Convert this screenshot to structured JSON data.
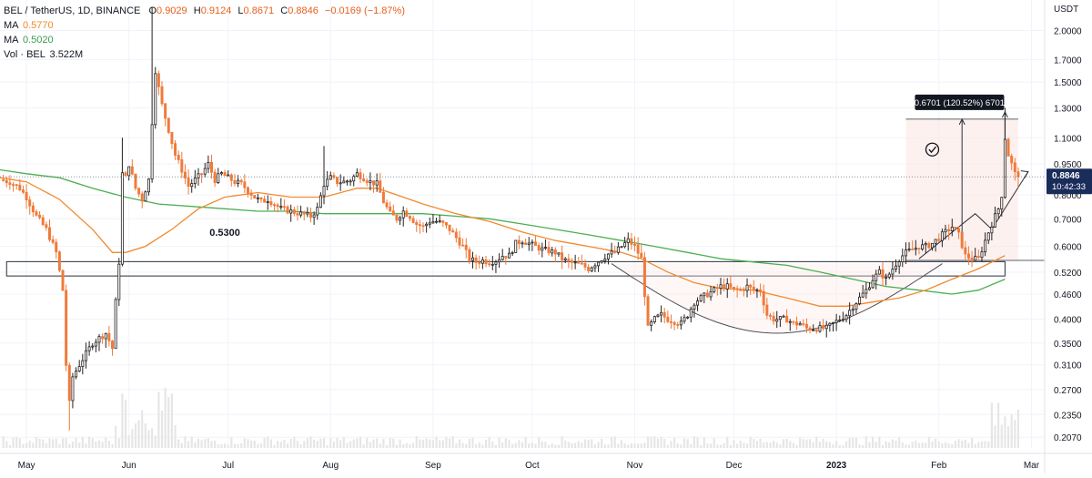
{
  "chart_data": {
    "type": "candlestick",
    "header": {
      "symbol": "BEL / TetherUS, 1D, BINANCE",
      "ohlc": [
        {
          "label": "O",
          "value": "0.9029"
        },
        {
          "label": "H",
          "value": "0.9124"
        },
        {
          "label": "L",
          "value": "0.8671"
        },
        {
          "label": "C",
          "value": "0.8846"
        }
      ],
      "change": "−0.0169 (−1.87%)"
    },
    "indicators": [
      {
        "label": "MA",
        "value": "0.5770",
        "color": "#f28a2e"
      },
      {
        "label": "MA",
        "value": "0.5020",
        "color": "#4caf50"
      },
      {
        "label": "Vol · BEL",
        "value": "3.522M",
        "color": "#131722"
      }
    ],
    "y_axis": {
      "unit": "USDT",
      "scale": "log",
      "range": [
        0.195,
        2.3
      ],
      "ticks": [
        "2.0000",
        "1.7000",
        "1.5000",
        "1.3000",
        "1.1000",
        "0.9500",
        "0.8000",
        "0.7000",
        "0.6000",
        "0.5200",
        "0.4600",
        "0.4000",
        "0.3500",
        "0.3100",
        "0.2700",
        "0.2350",
        "0.2070"
      ]
    },
    "x_axis": {
      "labels": [
        {
          "text": "May",
          "day": 0
        },
        {
          "text": "Jun",
          "day": 31
        },
        {
          "text": "Jul",
          "day": 61
        },
        {
          "text": "Aug",
          "day": 92
        },
        {
          "text": "Sep",
          "day": 123
        },
        {
          "text": "Oct",
          "day": 153
        },
        {
          "text": "Nov",
          "day": 184
        },
        {
          "text": "Dec",
          "day": 214
        },
        {
          "text": "2023",
          "day": 245,
          "bold": true
        },
        {
          "text": "Feb",
          "day": 276
        },
        {
          "text": "Mar",
          "day": 304
        }
      ],
      "first_day": -8,
      "last_day": 308
    },
    "last_price": {
      "value": 0.8846,
      "label": "0.8846",
      "countdown": "10:42:33",
      "color": "#1a2c5a"
    },
    "level_label": {
      "text": "0.5300",
      "value": 0.53
    },
    "measure_label": "0.6701 (120.52%) 6701",
    "price_path": [
      [
        -8,
        0.87
      ],
      [
        -5,
        0.86
      ],
      [
        -2,
        0.83
      ],
      [
        0,
        0.79
      ],
      [
        3,
        0.71
      ],
      [
        6,
        0.66
      ],
      [
        9,
        0.58
      ],
      [
        11,
        0.47
      ],
      [
        12,
        0.31
      ],
      [
        13,
        0.25
      ],
      [
        14,
        0.29
      ],
      [
        16,
        0.31
      ],
      [
        18,
        0.33
      ],
      [
        20,
        0.35
      ],
      [
        22,
        0.36
      ],
      [
        24,
        0.37
      ],
      [
        26,
        0.34
      ],
      [
        27,
        0.44
      ],
      [
        28,
        0.55
      ],
      [
        29,
        0.9
      ],
      [
        30,
        0.88
      ],
      [
        31,
        0.95
      ],
      [
        33,
        0.83
      ],
      [
        35,
        0.78
      ],
      [
        37,
        0.87
      ],
      [
        38,
        1.2
      ],
      [
        39,
        1.6
      ],
      [
        40,
        1.45
      ],
      [
        41,
        1.32
      ],
      [
        43,
        1.15
      ],
      [
        45,
        1.0
      ],
      [
        47,
        0.92
      ],
      [
        49,
        0.84
      ],
      [
        51,
        0.87
      ],
      [
        53,
        0.9
      ],
      [
        55,
        0.95
      ],
      [
        57,
        0.87
      ],
      [
        59,
        0.9
      ],
      [
        61,
        0.88
      ],
      [
        63,
        0.86
      ],
      [
        65,
        0.85
      ],
      [
        67,
        0.82
      ],
      [
        69,
        0.79
      ],
      [
        71,
        0.77
      ],
      [
        73,
        0.78
      ],
      [
        75,
        0.76
      ],
      [
        77,
        0.74
      ],
      [
        80,
        0.73
      ],
      [
        83,
        0.72
      ],
      [
        86,
        0.71
      ],
      [
        88,
        0.74
      ],
      [
        90,
        0.85
      ],
      [
        92,
        0.88
      ],
      [
        94,
        0.86
      ],
      [
        96,
        0.86
      ],
      [
        98,
        0.87
      ],
      [
        100,
        0.9
      ],
      [
        102,
        0.88
      ],
      [
        104,
        0.86
      ],
      [
        106,
        0.85
      ],
      [
        108,
        0.77
      ],
      [
        110,
        0.72
      ],
      [
        112,
        0.7
      ],
      [
        114,
        0.73
      ],
      [
        116,
        0.71
      ],
      [
        118,
        0.68
      ],
      [
        120,
        0.67
      ],
      [
        122,
        0.69
      ],
      [
        124,
        0.69
      ],
      [
        126,
        0.68
      ],
      [
        128,
        0.66
      ],
      [
        130,
        0.63
      ],
      [
        132,
        0.6
      ],
      [
        134,
        0.56
      ],
      [
        136,
        0.55
      ],
      [
        138,
        0.555
      ],
      [
        140,
        0.55
      ],
      [
        142,
        0.555
      ],
      [
        144,
        0.57
      ],
      [
        146,
        0.57
      ],
      [
        148,
        0.61
      ],
      [
        150,
        0.62
      ],
      [
        152,
        0.61
      ],
      [
        154,
        0.6
      ],
      [
        156,
        0.59
      ],
      [
        158,
        0.585
      ],
      [
        160,
        0.58
      ],
      [
        162,
        0.56
      ],
      [
        164,
        0.55
      ],
      [
        166,
        0.545
      ],
      [
        168,
        0.54
      ],
      [
        170,
        0.53
      ],
      [
        172,
        0.545
      ],
      [
        174,
        0.56
      ],
      [
        176,
        0.575
      ],
      [
        178,
        0.58
      ],
      [
        180,
        0.6
      ],
      [
        182,
        0.62
      ],
      [
        184,
        0.6
      ],
      [
        186,
        0.56
      ],
      [
        187,
        0.46
      ],
      [
        188,
        0.38
      ],
      [
        190,
        0.4
      ],
      [
        192,
        0.41
      ],
      [
        194,
        0.4
      ],
      [
        196,
        0.395
      ],
      [
        198,
        0.39
      ],
      [
        200,
        0.41
      ],
      [
        202,
        0.44
      ],
      [
        204,
        0.45
      ],
      [
        206,
        0.46
      ],
      [
        208,
        0.47
      ],
      [
        210,
        0.48
      ],
      [
        212,
        0.48
      ],
      [
        214,
        0.47
      ],
      [
        216,
        0.47
      ],
      [
        218,
        0.48
      ],
      [
        220,
        0.47
      ],
      [
        222,
        0.47
      ],
      [
        224,
        0.41
      ],
      [
        226,
        0.4
      ],
      [
        228,
        0.4
      ],
      [
        230,
        0.4
      ],
      [
        232,
        0.39
      ],
      [
        234,
        0.39
      ],
      [
        236,
        0.38
      ],
      [
        238,
        0.38
      ],
      [
        240,
        0.38
      ],
      [
        242,
        0.38
      ],
      [
        244,
        0.39
      ],
      [
        246,
        0.4
      ],
      [
        248,
        0.41
      ],
      [
        250,
        0.43
      ],
      [
        252,
        0.45
      ],
      [
        254,
        0.47
      ],
      [
        256,
        0.5
      ],
      [
        258,
        0.52
      ],
      [
        260,
        0.5
      ],
      [
        262,
        0.53
      ],
      [
        264,
        0.56
      ],
      [
        266,
        0.58
      ],
      [
        268,
        0.59
      ],
      [
        270,
        0.6
      ],
      [
        272,
        0.6
      ],
      [
        274,
        0.61
      ],
      [
        276,
        0.63
      ],
      [
        278,
        0.65
      ],
      [
        280,
        0.67
      ],
      [
        282,
        0.64
      ],
      [
        284,
        0.57
      ],
      [
        286,
        0.56
      ],
      [
        288,
        0.56
      ],
      [
        290,
        0.62
      ],
      [
        291,
        0.65
      ],
      [
        292,
        0.68
      ],
      [
        293,
        0.71
      ],
      [
        294,
        0.74
      ],
      [
        295,
        0.8
      ],
      [
        296,
        1.1
      ],
      [
        297,
        1.0
      ],
      [
        298,
        0.95
      ],
      [
        299,
        0.9
      ],
      [
        300,
        0.885
      ]
    ],
    "ma_orange_path": [
      [
        -8,
        0.88
      ],
      [
        0,
        0.86
      ],
      [
        10,
        0.78
      ],
      [
        20,
        0.66
      ],
      [
        26,
        0.58
      ],
      [
        30,
        0.58
      ],
      [
        36,
        0.6
      ],
      [
        44,
        0.66
      ],
      [
        52,
        0.74
      ],
      [
        60,
        0.79
      ],
      [
        70,
        0.81
      ],
      [
        80,
        0.79
      ],
      [
        90,
        0.79
      ],
      [
        100,
        0.83
      ],
      [
        106,
        0.83
      ],
      [
        112,
        0.8
      ],
      [
        120,
        0.76
      ],
      [
        130,
        0.72
      ],
      [
        140,
        0.69
      ],
      [
        150,
        0.65
      ],
      [
        160,
        0.62
      ],
      [
        170,
        0.6
      ],
      [
        180,
        0.58
      ],
      [
        186,
        0.56
      ],
      [
        194,
        0.52
      ],
      [
        202,
        0.49
      ],
      [
        210,
        0.475
      ],
      [
        220,
        0.47
      ],
      [
        230,
        0.45
      ],
      [
        240,
        0.43
      ],
      [
        248,
        0.43
      ],
      [
        256,
        0.44
      ],
      [
        264,
        0.45
      ],
      [
        272,
        0.47
      ],
      [
        280,
        0.5
      ],
      [
        288,
        0.53
      ],
      [
        296,
        0.57
      ]
    ],
    "ma_green_path": [
      [
        -8,
        0.92
      ],
      [
        0,
        0.9
      ],
      [
        10,
        0.88
      ],
      [
        20,
        0.83
      ],
      [
        30,
        0.79
      ],
      [
        40,
        0.76
      ],
      [
        50,
        0.75
      ],
      [
        60,
        0.74
      ],
      [
        70,
        0.73
      ],
      [
        80,
        0.73
      ],
      [
        90,
        0.72
      ],
      [
        100,
        0.72
      ],
      [
        110,
        0.72
      ],
      [
        120,
        0.72
      ],
      [
        130,
        0.71
      ],
      [
        140,
        0.7
      ],
      [
        150,
        0.68
      ],
      [
        160,
        0.66
      ],
      [
        170,
        0.64
      ],
      [
        180,
        0.62
      ],
      [
        190,
        0.6
      ],
      [
        200,
        0.58
      ],
      [
        210,
        0.56
      ],
      [
        220,
        0.55
      ],
      [
        230,
        0.54
      ],
      [
        240,
        0.52
      ],
      [
        250,
        0.5
      ],
      [
        260,
        0.48
      ],
      [
        270,
        0.47
      ],
      [
        280,
        0.46
      ],
      [
        288,
        0.47
      ],
      [
        296,
        0.5
      ]
    ]
  }
}
